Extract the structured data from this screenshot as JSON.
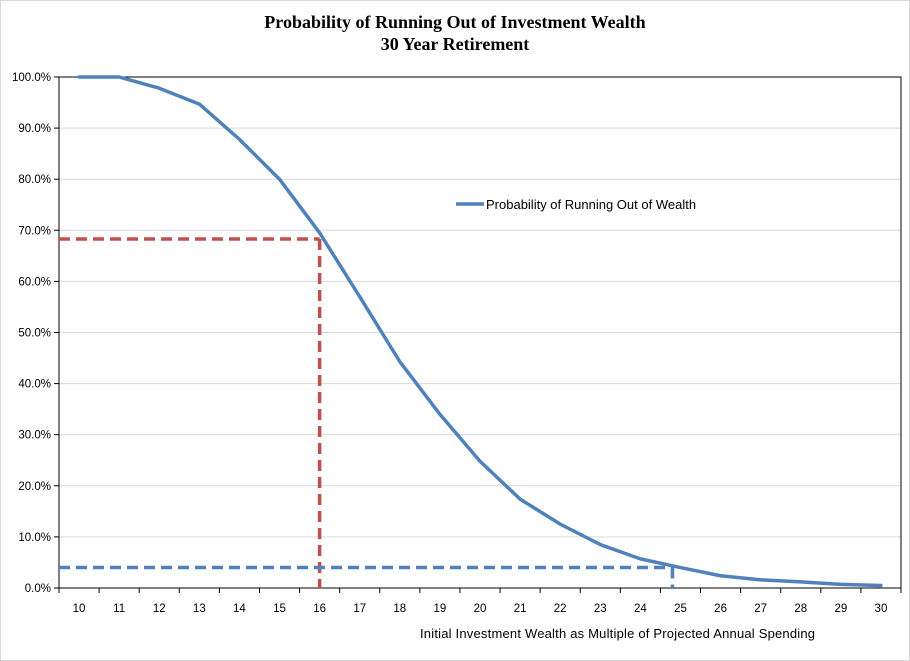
{
  "chart_data": {
    "type": "line",
    "title": "Probability of Running Out of Investment Wealth",
    "subtitle": "30 Year Retirement",
    "xlabel": "Initial Investment Wealth as Multiple of Projected Annual Spending",
    "ylabel": "",
    "x": [
      10,
      11,
      12,
      13,
      14,
      15,
      16,
      17,
      18,
      19,
      20,
      21,
      22,
      23,
      24,
      25,
      26,
      27,
      28,
      29,
      30
    ],
    "ylim": [
      0,
      100
    ],
    "yticks": [
      "0.0%",
      "10.0%",
      "20.0%",
      "30.0%",
      "40.0%",
      "50.0%",
      "60.0%",
      "70.0%",
      "80.0%",
      "90.0%",
      "100.0%"
    ],
    "grid": true,
    "legend_position": "center-right",
    "series": [
      {
        "name": "Probability of Running Out of Wealth",
        "color": "#4f81bd",
        "values": [
          100.0,
          100.0,
          97.8,
          94.7,
          87.8,
          80.0,
          69.5,
          57.0,
          44.3,
          34.0,
          24.8,
          17.4,
          12.5,
          8.5,
          5.7,
          4.0,
          2.4,
          1.6,
          1.2,
          0.7,
          0.5
        ]
      }
    ],
    "annotations": [
      {
        "kind": "dashed-guide",
        "color": "#c0504d",
        "x": 16,
        "y": 68.3
      },
      {
        "kind": "dashed-guide",
        "color": "#4f81bd",
        "x": 24.8,
        "y": 4.0
      }
    ]
  }
}
